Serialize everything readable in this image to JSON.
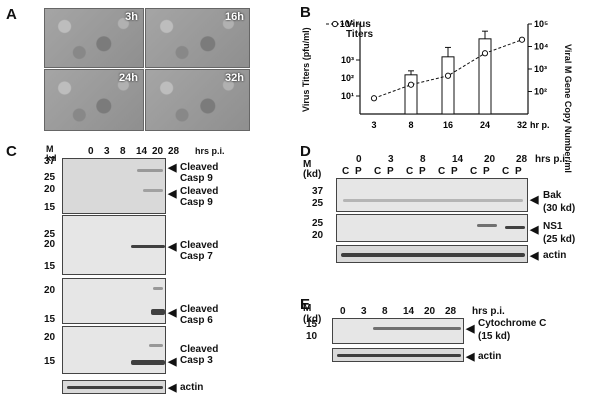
{
  "panels": {
    "A": {
      "label": "A",
      "images": [
        "3h",
        "16h",
        "24h",
        "32h"
      ]
    },
    "B": {
      "label": "B",
      "legend": "Virus Titers",
      "ylabel_left": "Virus Titers (pfu/ml)",
      "ylabel_right": "Viral M Gene Copy Number/ml",
      "xunit": "hr p.i.",
      "xticks": [
        "3",
        "8",
        "16",
        "24",
        "32"
      ],
      "yticks_left": [
        "10¹",
        "10³",
        "10⁵"
      ],
      "yticks_left_sub": [
        "10²"
      ],
      "yticks_right": [
        "10²",
        "10³",
        "10⁴",
        "10⁵"
      ]
    },
    "C": {
      "label": "C",
      "marker_header": "M kd",
      "lanes": [
        "0",
        "3",
        "8",
        "14",
        "20",
        "28"
      ],
      "unit": "hrs p.i.",
      "blots": [
        {
          "markers": [
            "37",
            "25",
            "20",
            "15"
          ],
          "labels": [
            "Cleaved Casp 9",
            "Cleaved Casp 9"
          ]
        },
        {
          "markers": [
            "25",
            "20",
            "15"
          ],
          "labels": [
            "Cleaved Casp 7"
          ]
        },
        {
          "markers": [
            "20",
            "15"
          ],
          "labels": [
            "Cleaved Casp 6"
          ]
        },
        {
          "markers": [
            "20",
            "15"
          ],
          "labels": [
            "Cleaved Casp 3"
          ]
        },
        {
          "markers": [],
          "labels": [
            "actin"
          ]
        }
      ]
    },
    "D": {
      "label": "D",
      "marker_header": "M (kd)",
      "timepoints": [
        "0",
        "3",
        "8",
        "14",
        "20",
        "28"
      ],
      "unit": "hrs p.i.",
      "sublanes": [
        "C",
        "P"
      ],
      "blots": [
        {
          "markers": [
            "37",
            "25"
          ],
          "label": "Bak",
          "sublabel": "(30 kd)"
        },
        {
          "markers": [
            "25",
            "20"
          ],
          "label": "NS1",
          "sublabel": "(25 kd)"
        },
        {
          "markers": [],
          "label": "actin",
          "sublabel": ""
        }
      ]
    },
    "E": {
      "label": "E",
      "marker_header": "M (kd)",
      "lanes": [
        "0",
        "3",
        "8",
        "14",
        "20",
        "28"
      ],
      "unit": "hrs p.i.",
      "blots": [
        {
          "markers": [
            "15",
            "10"
          ],
          "label": "Cytochrome C",
          "sublabel": "(15 kd)"
        },
        {
          "markers": [],
          "label": "actin",
          "sublabel": ""
        }
      ]
    }
  },
  "chart_data": {
    "type": "bar",
    "categories": [
      "3",
      "8",
      "16",
      "24",
      "32"
    ],
    "series": [
      {
        "name": "Viral M Gene Copy Number/ml",
        "values": [
          null,
          150,
          1500,
          15000,
          null
        ],
        "axis": "left",
        "error_upper": [
          null,
          250,
          5000,
          40000,
          null
        ]
      },
      {
        "name": "Virus Titers",
        "values": [
          50,
          200,
          500,
          5000,
          20000
        ],
        "axis": "right"
      }
    ],
    "ylim_left": [
      1,
      100000
    ],
    "ylim_right": [
      10,
      100000
    ],
    "yscale": "log",
    "xlabel": "hr p.i."
  }
}
